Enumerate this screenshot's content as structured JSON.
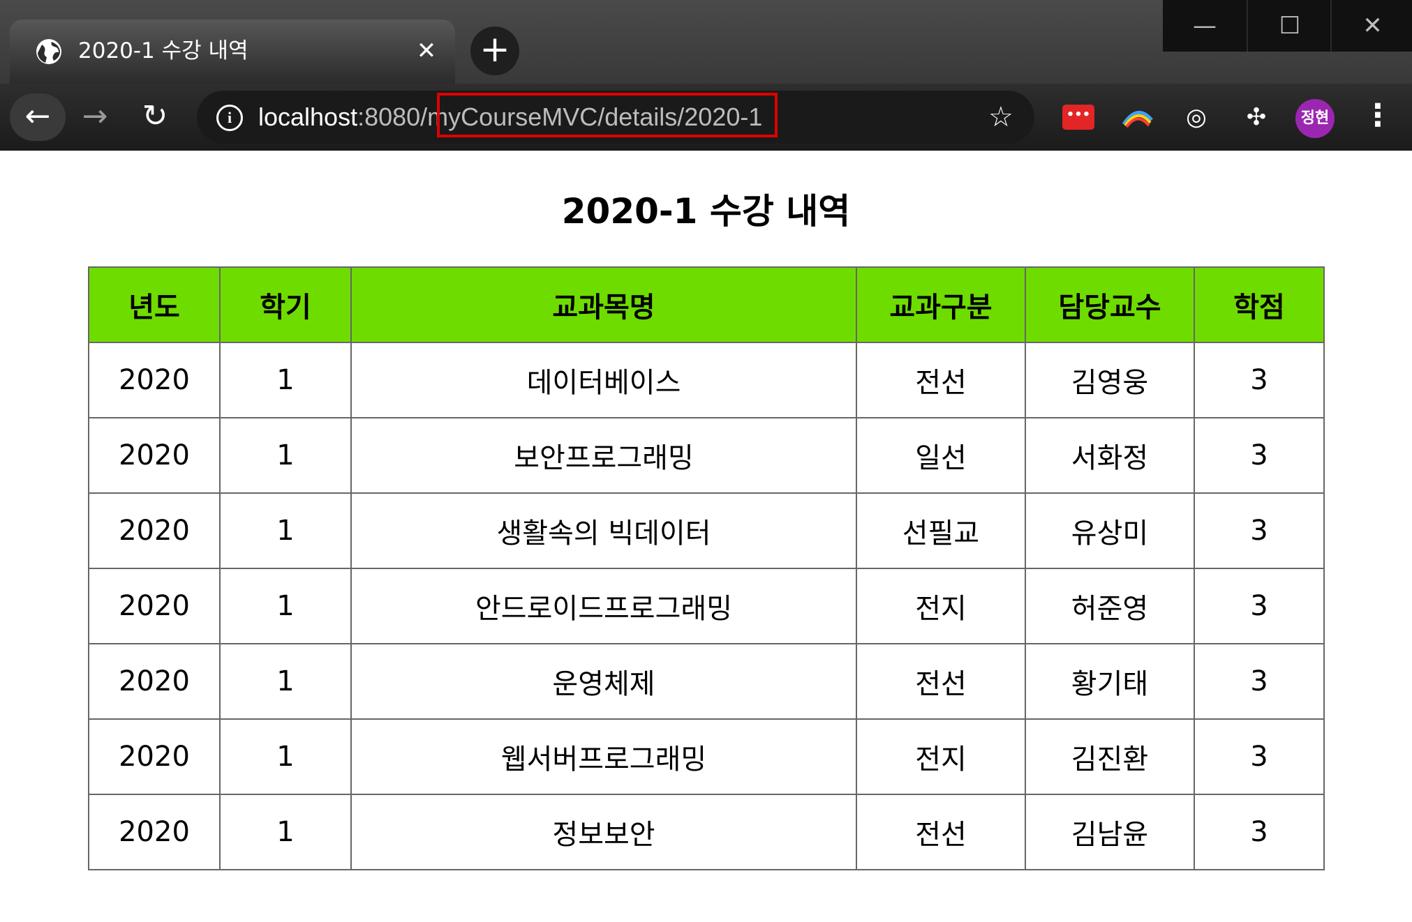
{
  "browser": {
    "tab": {
      "title": "2020-1 수강 내역",
      "close_glyph": "✕",
      "icon": "globe-icon"
    },
    "new_tab_glyph": "+",
    "window_controls": {
      "minimize_glyph": "—",
      "maximize_glyph": "☐",
      "close_glyph": "✕"
    },
    "nav": {
      "back_glyph": "←",
      "forward_glyph": "→",
      "reload_glyph": "↻"
    },
    "address": {
      "host": "localhost",
      "rest": ":8080/myCourseMVC/details/2020-1",
      "info_glyph": "i"
    },
    "bookmark_glyph": "☆",
    "extensions": {
      "red_ext_glyph": "•••",
      "arc_glyph": "⌒",
      "target_glyph": "◎",
      "puzzle_glyph": "✣"
    },
    "profile_avatar_text": "정현",
    "menu_glyph": "⋮",
    "highlight_color": "#e00000"
  },
  "page": {
    "title": "2020-1 수강 내역",
    "table": {
      "header_color": "#6fdc00",
      "headers": [
        "년도",
        "학기",
        "교과목명",
        "교과구분",
        "담당교수",
        "학점"
      ],
      "rows": [
        [
          "2020",
          "1",
          "데이터베이스",
          "전선",
          "김영웅",
          "3"
        ],
        [
          "2020",
          "1",
          "보안프로그래밍",
          "일선",
          "서화정",
          "3"
        ],
        [
          "2020",
          "1",
          "생활속의 빅데이터",
          "선필교",
          "유상미",
          "3"
        ],
        [
          "2020",
          "1",
          "안드로이드프로그래밍",
          "전지",
          "허준영",
          "3"
        ],
        [
          "2020",
          "1",
          "운영체제",
          "전선",
          "황기태",
          "3"
        ],
        [
          "2020",
          "1",
          "웹서버프로그래밍",
          "전지",
          "김진환",
          "3"
        ],
        [
          "2020",
          "1",
          "정보보안",
          "전선",
          "김남윤",
          "3"
        ]
      ]
    }
  }
}
